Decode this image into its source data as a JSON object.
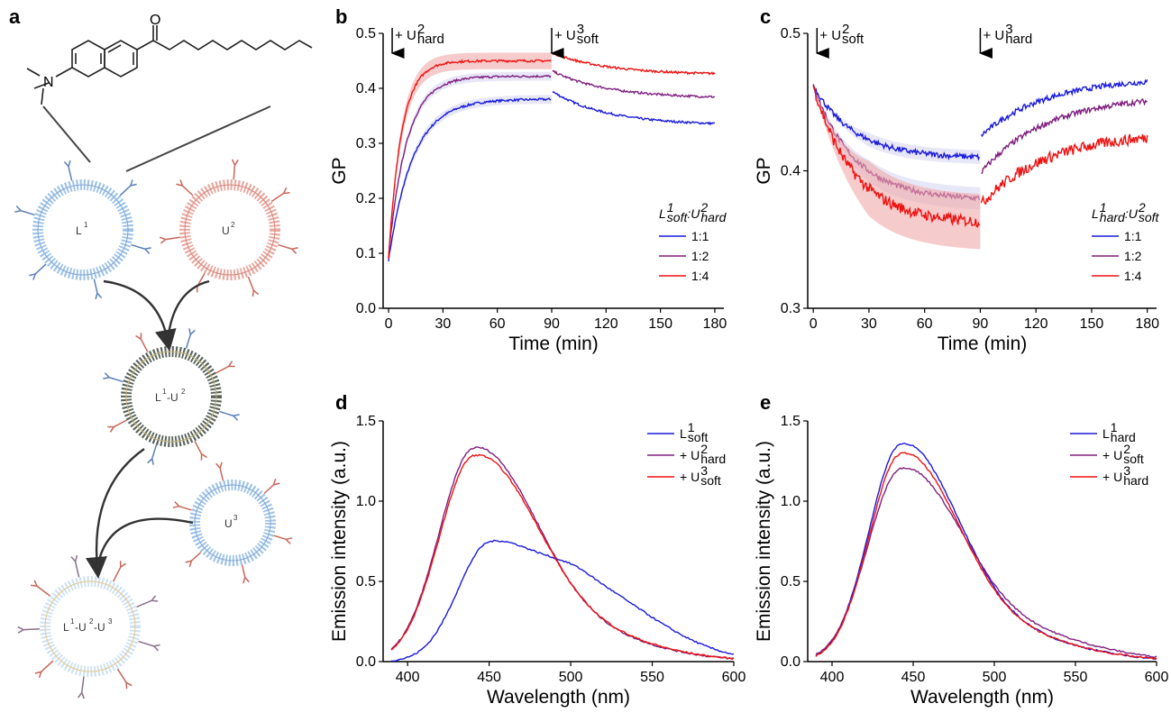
{
  "panel_letters": {
    "a": "a",
    "b": "b",
    "c": "c",
    "d": "d",
    "e": "e"
  },
  "schematic": {
    "molecule_atoms": {
      "n": "N",
      "o": "O"
    },
    "vesicle_labels": {
      "l1": "L",
      "l1_sup": "1",
      "u2": "U",
      "u2_sup": "2",
      "l1u2_a": "L",
      "l1u2_a_sup": "1",
      "l1u2_b": "-U",
      "l1u2_b_sup": "2",
      "u3": "U",
      "u3_sup": "3",
      "l1u2u3_a": "L",
      "l1u2u3_a_sup": "1",
      "l1u2u3_b": "-U",
      "l1u2u3_b_sup": "2",
      "l1u2u3_c": "-U",
      "l1u2u3_c_sup": "3"
    },
    "colors": {
      "blue_membrane": "#9fc3e6",
      "red_membrane": "#e8a9a0",
      "mixed_membrane": "#59635a",
      "arrow": "#333333"
    }
  },
  "chart_data": [
    {
      "id": "b",
      "type": "line",
      "ylabel": "GP",
      "xlabel": "Time (min)",
      "xlim": [
        -3,
        185
      ],
      "ylim": [
        0,
        0.5
      ],
      "xticks": [
        "0",
        "30",
        "60",
        "90",
        "120",
        "150",
        "180"
      ],
      "yticks": [
        "0.0",
        "0.1",
        "0.2",
        "0.3",
        "0.4",
        "0.5"
      ],
      "annotations": [
        {
          "pre": "+ U",
          "sup": "2",
          "sub": "hard",
          "x": 2
        },
        {
          "pre": "+ U",
          "sup": "3",
          "sub": "soft",
          "x": 90
        }
      ],
      "legend_title": {
        "base": "L",
        "sup": "1",
        "sub": "soft",
        "sep": ":U",
        "sup2": "2",
        "sub2": "hard"
      },
      "legend_position": "bottom-right",
      "series": [
        {
          "name": "1:1",
          "color": "#1a1adb",
          "y0": 0.087,
          "k1": 0.075,
          "y90": 0.38,
          "j90": 0.395,
          "y180": 0.333,
          "band": 0.008
        },
        {
          "name": "1:2",
          "color": "#7f1f7f",
          "y0": 0.095,
          "k1": 0.1,
          "y90": 0.422,
          "j90": 0.432,
          "y180": 0.382,
          "band": 0.008
        },
        {
          "name": "1:4",
          "color": "#ee1111",
          "y0": 0.09,
          "k1": 0.14,
          "y90": 0.45,
          "j90": 0.465,
          "y180": 0.425,
          "band": 0.015
        }
      ],
      "band_color": "#f0a8a8"
    },
    {
      "id": "c",
      "type": "line",
      "ylabel": "GP",
      "xlabel": "Time (min)",
      "xlim": [
        -3,
        185
      ],
      "ylim": [
        0.3,
        0.5
      ],
      "xticks": [
        "0",
        "30",
        "60",
        "90",
        "120",
        "150",
        "180"
      ],
      "yticks": [
        "0.3",
        "0.4",
        "0.5"
      ],
      "annotations": [
        {
          "pre": "+ U",
          "sup": "2",
          "sub": "soft",
          "x": 2
        },
        {
          "pre": "+ U",
          "sup": "3",
          "sub": "hard",
          "x": 90
        }
      ],
      "legend_title": {
        "base": "L",
        "sup": "1",
        "sub": "hard",
        "sep": ":U",
        "sup2": "2",
        "sub2": "soft"
      },
      "legend_position": "bottom-right",
      "series": [
        {
          "name": "1:1",
          "color": "#1a1adb",
          "y0": 0.462,
          "y90": 0.41,
          "j90": 0.425,
          "y180": 0.468,
          "band": 0.005
        },
        {
          "name": "1:2",
          "color": "#7f1f7f",
          "y0": 0.462,
          "y90": 0.38,
          "j90": 0.398,
          "y180": 0.455,
          "band": 0.008
        },
        {
          "name": "1:4",
          "color": "#ee1111",
          "y0": 0.462,
          "y90": 0.363,
          "j90": 0.375,
          "y180": 0.428,
          "band": 0.02
        }
      ],
      "band_color": "#f0a8a8"
    },
    {
      "id": "d",
      "type": "line",
      "ylabel": "Emission intensity (a.u.)",
      "xlabel": "Wavelength (nm)",
      "xlim": [
        385,
        600
      ],
      "ylim": [
        0,
        1.5
      ],
      "xticks": [
        "400",
        "450",
        "500",
        "550",
        "600"
      ],
      "yticks": [
        "0.0",
        "0.5",
        "1.0",
        "1.5"
      ],
      "legend_position": "top-right",
      "series": [
        {
          "name": {
            "base": "L",
            "sup": "1",
            "sub": "soft"
          },
          "color": "#1a1adb",
          "peaks": [
            [
              450,
              0.72,
              26
            ],
            [
              510,
              0.42,
              34
            ]
          ]
        },
        {
          "name": {
            "base": "+ U",
            "sup": "2",
            "sub": "hard"
          },
          "color": "#7f1f7f",
          "peaks": [
            [
              440,
              1.28,
              28
            ],
            [
              490,
              0.2,
              40
            ]
          ]
        },
        {
          "name": {
            "base": "+ U",
            "sup": "3",
            "sub": "soft"
          },
          "color": "#ee1111",
          "peaks": [
            [
              440,
              1.23,
              28
            ],
            [
              490,
              0.21,
              40
            ]
          ]
        }
      ]
    },
    {
      "id": "e",
      "type": "line",
      "ylabel": "Emission intensity (a.u.)",
      "xlabel": "Wavelength (nm)",
      "xlim": [
        385,
        600
      ],
      "ylim": [
        0,
        1.5
      ],
      "xticks": [
        "400",
        "450",
        "500",
        "550",
        "600"
      ],
      "yticks": [
        "0.0",
        "0.5",
        "1.0",
        "1.5"
      ],
      "legend_position": "top-right",
      "series": [
        {
          "name": {
            "base": "L",
            "sup": "1",
            "sub": "hard"
          },
          "color": "#1a1adb",
          "peaks": [
            [
              442,
              1.3,
              26
            ],
            [
              490,
              0.2,
              40
            ]
          ]
        },
        {
          "name": {
            "base": "+ U",
            "sup": "2",
            "sub": "soft"
          },
          "color": "#7f1f7f",
          "peaks": [
            [
              442,
              1.15,
              27
            ],
            [
              495,
              0.22,
              42
            ]
          ]
        },
        {
          "name": {
            "base": "+ U",
            "sup": "3",
            "sub": "hard"
          },
          "color": "#ee1111",
          "peaks": [
            [
              442,
              1.24,
              26
            ],
            [
              490,
              0.2,
              40
            ]
          ]
        }
      ]
    }
  ]
}
